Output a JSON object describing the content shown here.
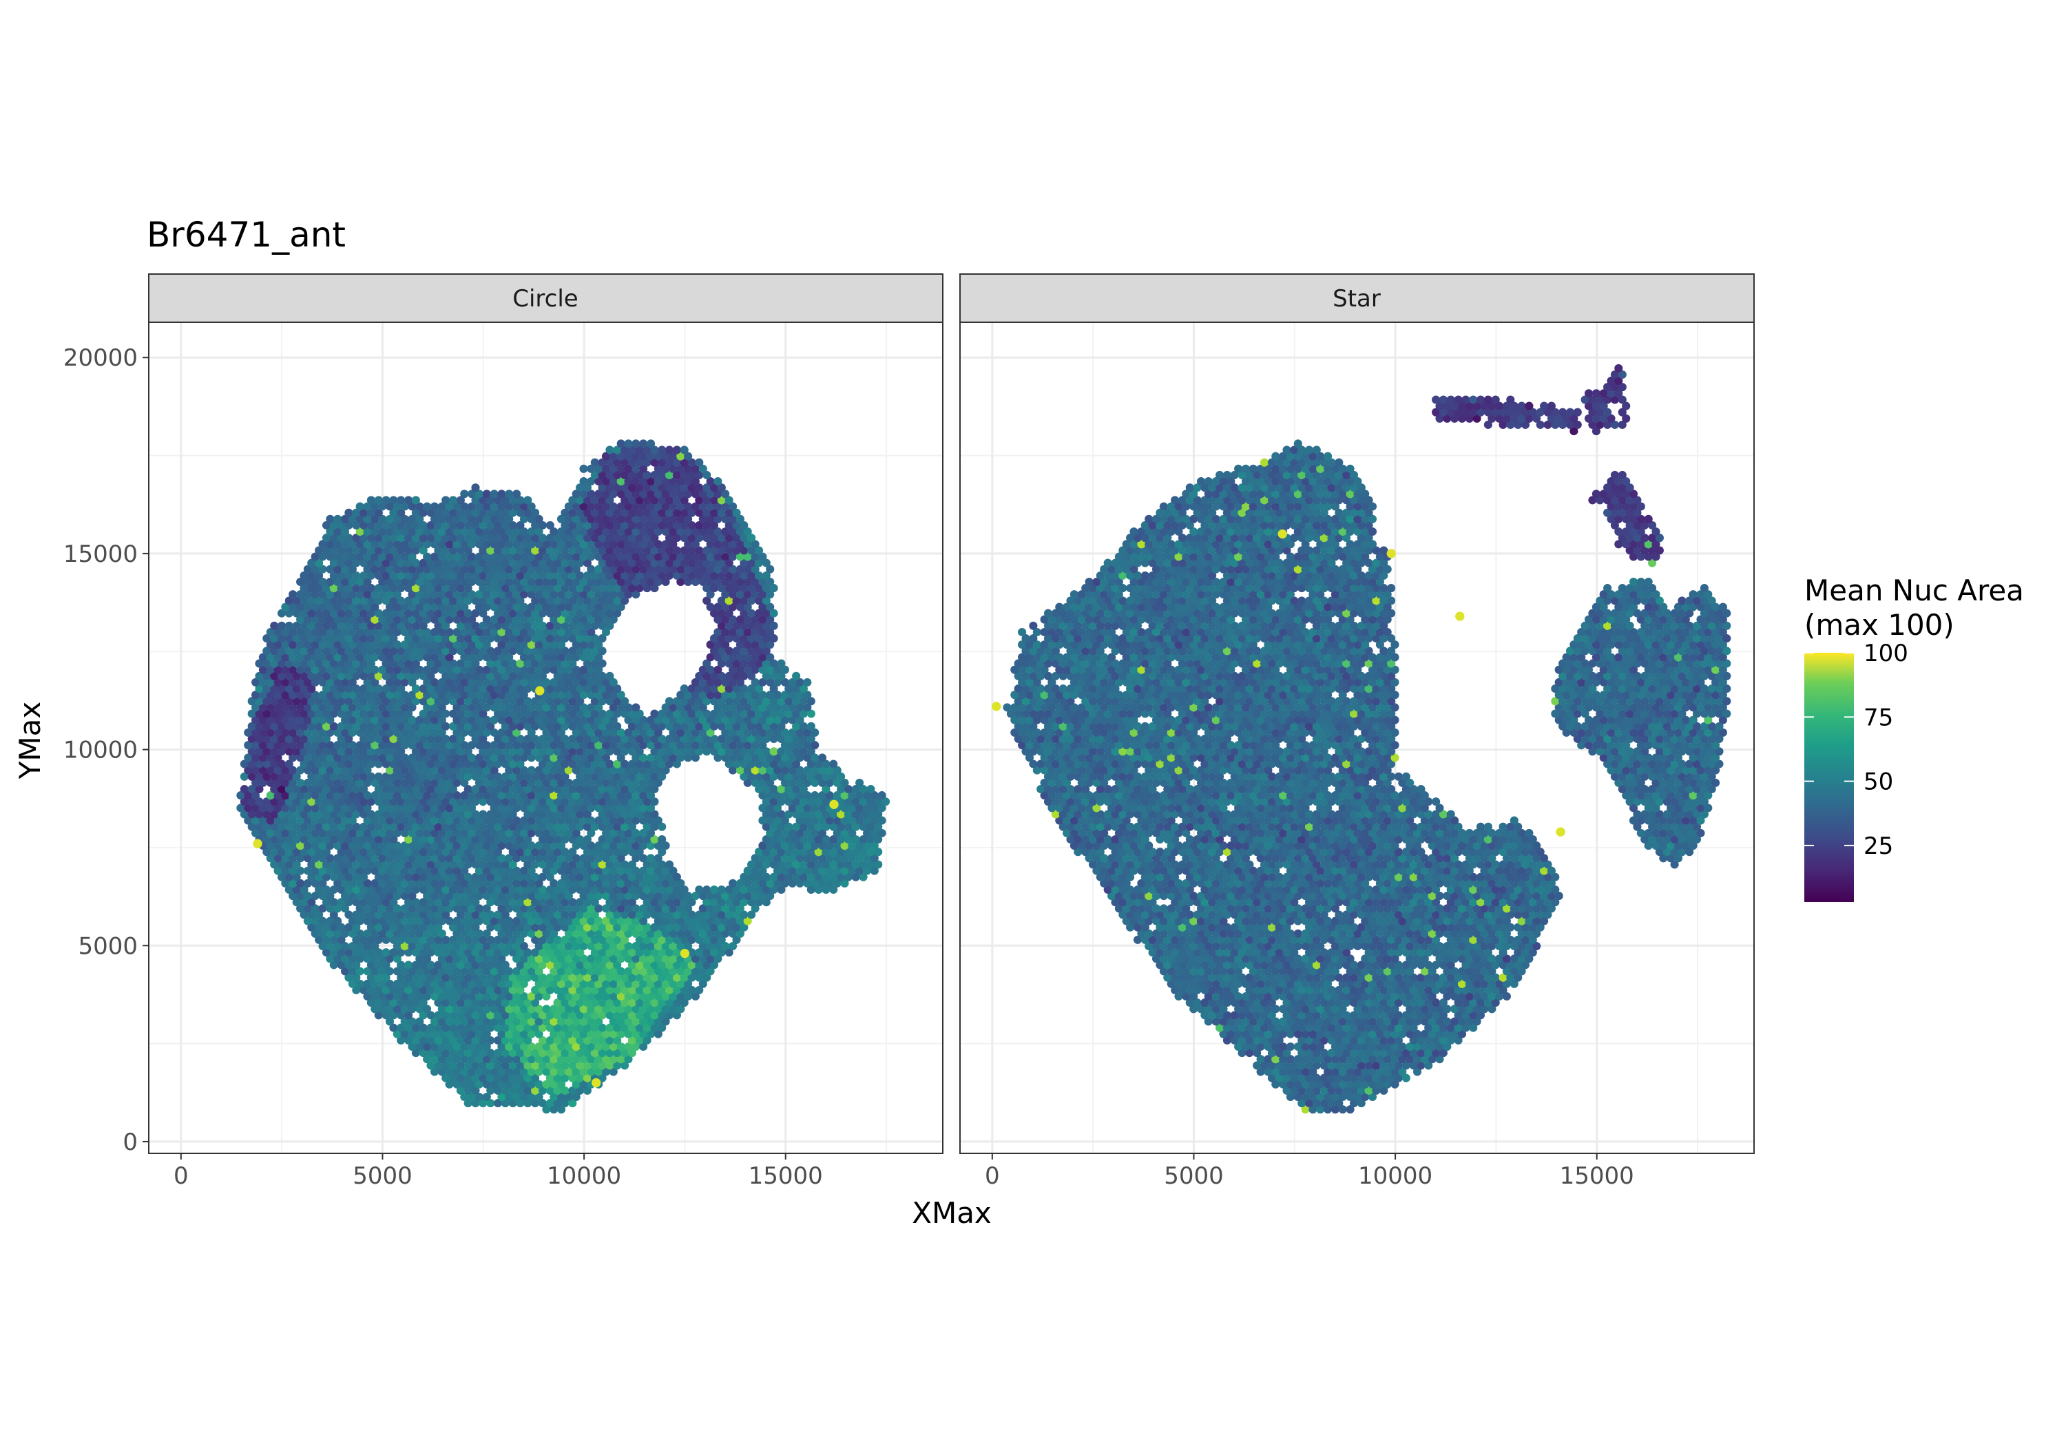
{
  "chart_data": {
    "type": "heatmap",
    "title": "Br6471_ant",
    "xlabel": "XMax",
    "ylabel": "YMax",
    "xlim": [
      -800,
      18900
    ],
    "ylim": [
      -300,
      20900
    ],
    "x_ticks": [
      0,
      5000,
      10000,
      15000
    ],
    "y_ticks": [
      0,
      5000,
      10000,
      15000,
      20000
    ],
    "grid": true,
    "legend": {
      "title_line1": "Mean Nuc Area",
      "title_line2": "(max 100)",
      "ticks": [
        25,
        50,
        75,
        100
      ],
      "range": [
        3,
        100
      ],
      "placement": "right",
      "colormap": "viridis"
    },
    "panels": [
      {
        "name": "Circle",
        "regions": [
          {
            "label": "main",
            "polygon": [
              [
                1400,
                8400
              ],
              [
                1700,
                11000
              ],
              [
                2000,
                12600
              ],
              [
                2700,
                14000
              ],
              [
                3700,
                15900
              ],
              [
                5000,
                16500
              ],
              [
                6400,
                16300
              ],
              [
                7300,
                16700
              ],
              [
                8500,
                16500
              ],
              [
                9300,
                15600
              ],
              [
                9500,
                16100
              ],
              [
                10000,
                17200
              ],
              [
                11000,
                17900
              ],
              [
                12500,
                17700
              ],
              [
                13300,
                16900
              ],
              [
                14000,
                15800
              ],
              [
                14800,
                14300
              ],
              [
                14700,
                12400
              ],
              [
                15600,
                11700
              ],
              [
                15800,
                9900
              ],
              [
                17500,
                8800
              ],
              [
                17300,
                6900
              ],
              [
                15900,
                6300
              ],
              [
                15100,
                6600
              ],
              [
                14300,
                5900
              ],
              [
                13000,
                3900
              ],
              [
                11000,
                1900
              ],
              [
                9500,
                800
              ],
              [
                7200,
                900
              ],
              [
                5500,
                2500
              ],
              [
                3500,
                4800
              ]
            ]
          },
          {
            "label": "upper-right-dark",
            "polygon": [
              [
                9900,
                16200
              ],
              [
                10600,
                17600
              ],
              [
                12200,
                17800
              ],
              [
                13200,
                16800
              ],
              [
                14000,
                15300
              ],
              [
                14800,
                13000
              ],
              [
                14300,
                11900
              ],
              [
                13300,
                11300
              ],
              [
                12200,
                11700
              ],
              [
                11300,
                13600
              ],
              [
                10500,
                14700
              ]
            ]
          },
          {
            "label": "left-edge-dark",
            "polygon": [
              [
                1500,
                8500
              ],
              [
                1800,
                10800
              ],
              [
                2500,
                12300
              ],
              [
                3300,
                11700
              ],
              [
                3000,
                9800
              ],
              [
                2300,
                8100
              ]
            ]
          },
          {
            "label": "bright-center",
            "polygon": [
              [
                8200,
                4200
              ],
              [
                8000,
                2500
              ],
              [
                9300,
                1100
              ],
              [
                11300,
                2300
              ],
              [
                12800,
                4600
              ],
              [
                11700,
                5500
              ],
              [
                10100,
                6000
              ]
            ]
          }
        ],
        "holes": [
          {
            "label": "upper hole",
            "polygon": [
              [
                10500,
                12800
              ],
              [
                11100,
                13800
              ],
              [
                12200,
                14300
              ],
              [
                13000,
                14000
              ],
              [
                13200,
                12800
              ],
              [
                12600,
                11700
              ],
              [
                11700,
                10900
              ],
              [
                11000,
                11300
              ],
              [
                10500,
                12100
              ]
            ]
          },
          {
            "label": "right hole",
            "polygon": [
              [
                12300,
                9600
              ],
              [
                13200,
                9900
              ],
              [
                14300,
                8900
              ],
              [
                14500,
                7700
              ],
              [
                13700,
                6600
              ],
              [
                12600,
                6400
              ],
              [
                12000,
                7600
              ],
              [
                11800,
                8900
              ]
            ]
          }
        ],
        "outliers": [
          [
            1900,
            7600
          ],
          [
            10300,
            1500
          ],
          [
            12500,
            4800
          ],
          [
            8900,
            11500
          ],
          [
            16200,
            8600
          ]
        ]
      },
      {
        "name": "Star",
        "regions": [
          {
            "label": "main",
            "polygon": [
              [
                300,
                11000
              ],
              [
                700,
                13000
              ],
              [
                1700,
                13700
              ],
              [
                2800,
                14700
              ],
              [
                3700,
                15800
              ],
              [
                5000,
                16800
              ],
              [
                6500,
                17300
              ],
              [
                7700,
                17900
              ],
              [
                8800,
                17300
              ],
              [
                9500,
                16400
              ],
              [
                9900,
                15000
              ],
              [
                10000,
                12500
              ],
              [
                10000,
                9600
              ],
              [
                11100,
                8600
              ],
              [
                11900,
                8000
              ],
              [
                13000,
                8300
              ],
              [
                14000,
                7000
              ],
              [
                14100,
                6200
              ],
              [
                13000,
                3900
              ],
              [
                10900,
                1900
              ],
              [
                9000,
                800
              ],
              [
                7800,
                700
              ],
              [
                6000,
                2400
              ],
              [
                4500,
                3800
              ],
              [
                2700,
                6500
              ],
              [
                1500,
                8300
              ]
            ]
          },
          {
            "label": "right blob",
            "polygon": [
              [
                13900,
                11700
              ],
              [
                14500,
                13000
              ],
              [
                15200,
                14200
              ],
              [
                16200,
                14400
              ],
              [
                16800,
                13600
              ],
              [
                17600,
                14200
              ],
              [
                18300,
                13500
              ],
              [
                18300,
                11200
              ],
              [
                18000,
                9300
              ],
              [
                17500,
                7600
              ],
              [
                17000,
                7000
              ],
              [
                16200,
                7500
              ],
              [
                15600,
                8900
              ],
              [
                15000,
                9800
              ],
              [
                14300,
                10300
              ],
              [
                13900,
                11000
              ]
            ]
          },
          {
            "label": "right arm",
            "polygon": [
              [
                14800,
                16500
              ],
              [
                15600,
                17200
              ],
              [
                16200,
                16000
              ],
              [
                16700,
                15400
              ],
              [
                16400,
                14600
              ],
              [
                15600,
                15100
              ],
              [
                15200,
                15900
              ]
            ]
          },
          {
            "label": "top-right fragment",
            "polygon": [
              [
                14600,
                19000
              ],
              [
                15200,
                19300
              ],
              [
                15600,
                19900
              ],
              [
                15800,
                18300
              ],
              [
                14900,
                18100
              ]
            ]
          },
          {
            "label": "top-middle strip",
            "polygon": [
              [
                11000,
                19000
              ],
              [
                12500,
                19000
              ],
              [
                13600,
                18800
              ],
              [
                14600,
                18700
              ],
              [
                14600,
                18100
              ],
              [
                13400,
                18200
              ],
              [
                12000,
                18300
              ],
              [
                11000,
                18300
              ]
            ]
          }
        ],
        "holes": [
          {
            "label": "notch",
            "polygon": [
              [
                9400,
                15400
              ],
              [
                9900,
                16700
              ],
              [
                10200,
                15300
              ],
              [
                10000,
                13800
              ],
              [
                9800,
                15000
              ]
            ]
          }
        ],
        "outliers": [
          [
            100,
            11100
          ],
          [
            14100,
            7900
          ],
          [
            9900,
            15000
          ],
          [
            7200,
            15500
          ],
          [
            11600,
            13400
          ]
        ]
      }
    ]
  }
}
